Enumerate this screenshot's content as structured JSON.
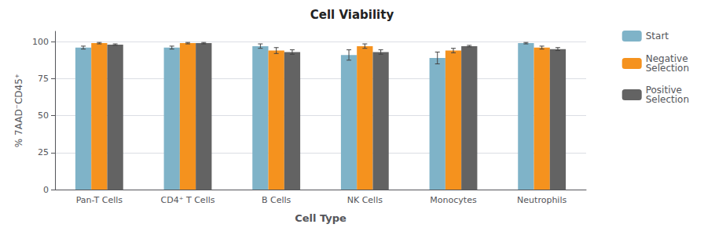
{
  "chart_data": {
    "type": "bar",
    "title": "Cell Viability",
    "xlabel": "Cell Type",
    "ylabel": "% 7AAD⁻CD45⁺",
    "categories": [
      "Pan-T Cells",
      "CD4⁺ T Cells",
      "B Cells",
      "NK Cells",
      "Monocytes",
      "Neutrophils"
    ],
    "series": [
      {
        "name": "Start",
        "color": "#7fb3c8",
        "values": [
          96,
          96,
          97,
          91,
          89,
          99
        ],
        "errors": [
          1.0,
          1.0,
          1.5,
          3.5,
          4.0,
          0.5
        ]
      },
      {
        "name": "Negative\nSelection",
        "color": "#f5921e",
        "values": [
          99,
          99,
          94,
          97,
          94,
          96
        ],
        "errors": [
          0.5,
          0.5,
          2.0,
          1.5,
          1.5,
          1.0
        ]
      },
      {
        "name": "Positive\nSelection",
        "color": "#636363",
        "values": [
          98,
          99,
          93,
          93,
          97,
          95
        ],
        "errors": [
          0.5,
          0.5,
          1.5,
          1.5,
          0.5,
          1.0
        ]
      }
    ],
    "ylim": [
      0,
      107
    ],
    "yticks": [
      0,
      25,
      50,
      75,
      100
    ],
    "grid": true,
    "legend": "upper right"
  }
}
